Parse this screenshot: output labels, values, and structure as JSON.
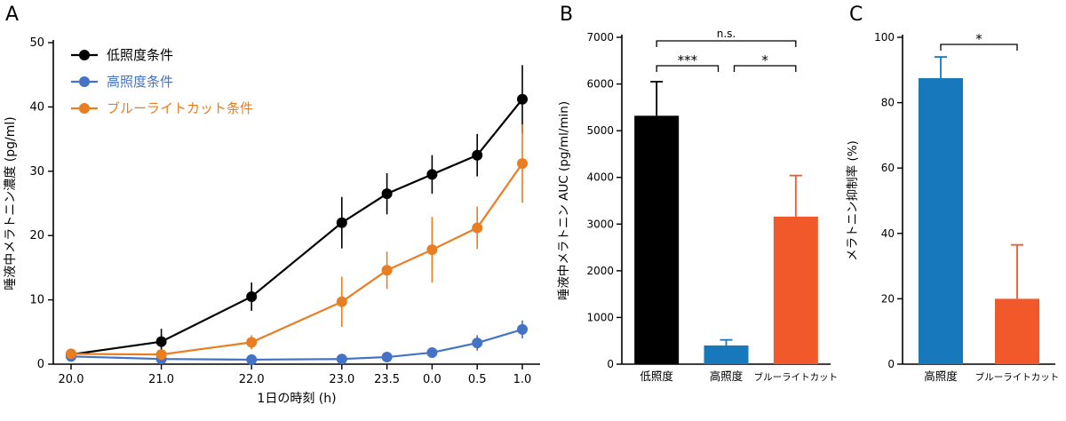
{
  "panels": {
    "a": {
      "label": "A"
    },
    "b": {
      "label": "B"
    },
    "c": {
      "label": "C"
    }
  },
  "chart_data": [
    {
      "id": "A",
      "type": "line",
      "title": "",
      "xlabel": "1日の時刻 (h)",
      "ylabel": "唾液中メラトニン濃度 (pg/ml)",
      "x_hours": [
        20,
        21,
        22,
        23,
        23.5,
        24,
        24.5,
        25
      ],
      "x_tick_labels": [
        "20.0",
        "21.0",
        "22.0",
        "23.0",
        "23.5",
        "0.0",
        "0.5",
        "1.0"
      ],
      "ylim": [
        0,
        50
      ],
      "yticks": [
        0,
        10,
        20,
        30,
        40,
        50
      ],
      "legend_position": "upper-left-inside",
      "grid": false,
      "series": [
        {
          "name": "低照度条件",
          "color": "#000000",
          "values": [
            1.5,
            3.5,
            10.5,
            22.0,
            26.5,
            29.5,
            32.5,
            41.2
          ],
          "errors": [
            0.8,
            2.0,
            2.2,
            4.0,
            3.2,
            3.0,
            3.3,
            5.3
          ]
        },
        {
          "name": "高照度条件",
          "color": "#4472C4",
          "values": [
            1.2,
            0.8,
            0.7,
            0.8,
            1.1,
            1.8,
            3.3,
            5.4
          ],
          "errors": [
            0.5,
            0.4,
            0.3,
            0.4,
            0.5,
            0.7,
            1.2,
            1.4
          ]
        },
        {
          "name": "ブルーライトカット条件",
          "color": "#E87D22",
          "values": [
            1.6,
            1.5,
            3.4,
            9.7,
            14.6,
            17.8,
            21.2,
            31.2
          ],
          "errors": [
            0.6,
            0.7,
            1.1,
            3.9,
            2.9,
            5.1,
            3.3,
            6.1
          ]
        }
      ]
    },
    {
      "id": "B",
      "type": "bar",
      "title": "",
      "xlabel": "",
      "ylabel": "唾液中メラトニン AUC (pg/ml/min)",
      "categories": [
        "低照度",
        "高照度",
        "ブルーライトカット"
      ],
      "values": [
        5320,
        400,
        3160
      ],
      "errors": [
        730,
        120,
        880
      ],
      "colors": [
        "#000000",
        "#1779BB",
        "#F1582A"
      ],
      "ylim": [
        0,
        7000
      ],
      "yticks": [
        0,
        1000,
        2000,
        3000,
        4000,
        5000,
        6000,
        7000
      ],
      "grid": false,
      "significance": [
        {
          "from": 0,
          "to": 1,
          "label": "***"
        },
        {
          "from": 1,
          "to": 2,
          "label": "*"
        },
        {
          "from": 0,
          "to": 2,
          "label": "n.s."
        }
      ]
    },
    {
      "id": "C",
      "type": "bar",
      "title": "",
      "xlabel": "",
      "ylabel": "メラトニン抑制率 (%)",
      "categories": [
        "高照度",
        "ブルーライトカット"
      ],
      "values": [
        87.5,
        20
      ],
      "errors": [
        6.5,
        16.5
      ],
      "colors": [
        "#1779BB",
        "#F1582A"
      ],
      "ylim": [
        0,
        100
      ],
      "yticks": [
        0,
        20,
        40,
        60,
        80,
        100
      ],
      "grid": false,
      "significance": [
        {
          "from": 0,
          "to": 1,
          "label": "*"
        }
      ]
    }
  ]
}
